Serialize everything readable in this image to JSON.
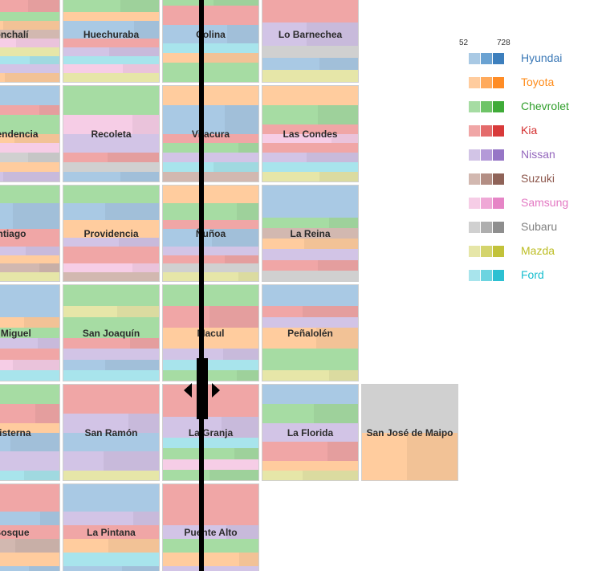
{
  "chart_data": {
    "type": "mosaic-treemap",
    "title": "",
    "legend": {
      "scale_min": "52",
      "scale_max": "728",
      "brands": [
        {
          "name": "Hyundai",
          "colors": [
            "#a9c9e4",
            "#6aa2d2",
            "#3d7fbd"
          ],
          "text_color": "#3a78b6"
        },
        {
          "name": "Toyota",
          "colors": [
            "#ffcc9e",
            "#ffaa5c",
            "#ff8c25"
          ],
          "text_color": "#ff8c1a"
        },
        {
          "name": "Chevrolet",
          "colors": [
            "#a6dca3",
            "#6ec467",
            "#3fab38"
          ],
          "text_color": "#2f9e2a"
        },
        {
          "name": "Kia",
          "colors": [
            "#f0a6a6",
            "#e46b6b",
            "#d83a3a"
          ],
          "text_color": "#d43030"
        },
        {
          "name": "Nissan",
          "colors": [
            "#d2c4e6",
            "#b49ad8",
            "#9676c6"
          ],
          "text_color": "#9467bd"
        },
        {
          "name": "Suzuki",
          "colors": [
            "#d2b8b0",
            "#b38e84",
            "#8f6358"
          ],
          "text_color": "#8c564b"
        },
        {
          "name": "Samsung",
          "colors": [
            "#f6cde6",
            "#efa8d6",
            "#e685c6"
          ],
          "text_color": "#e377c2"
        },
        {
          "name": "Subaru",
          "colors": [
            "#d0d0d0",
            "#aeaeae",
            "#8e8e8e"
          ],
          "text_color": "#7f7f7f"
        },
        {
          "name": "Mazda",
          "colors": [
            "#e6e6a8",
            "#d4d46c",
            "#c2c23a"
          ],
          "text_color": "#bcbd22"
        },
        {
          "name": "Ford",
          "colors": [
            "#a8e4ec",
            "#6cd4e0",
            "#2cc0d2"
          ],
          "text_color": "#17becf"
        }
      ]
    },
    "grid": {
      "columns": 5,
      "rows": 6
    },
    "comunas": [
      {
        "name": "Conchalí",
        "label": "onchalí",
        "col": 0,
        "row": 0,
        "bands": [
          [
            "Hyundai",
            1
          ],
          [
            "Kia",
            2
          ],
          [
            "Chevrolet",
            1
          ],
          [
            "Toyota",
            1
          ],
          [
            "Suzuki",
            1
          ],
          [
            "Samsung",
            1
          ],
          [
            "Mazda",
            1
          ],
          [
            "Ford",
            1
          ],
          [
            "Nissan",
            1
          ],
          [
            "Toyota",
            1
          ]
        ]
      },
      {
        "name": "Huechuraba",
        "label": "Huechuraba",
        "col": 1,
        "row": 0,
        "bands": [
          [
            "Kia",
            1
          ],
          [
            "Chevrolet",
            2
          ],
          [
            "Toyota",
            1
          ],
          [
            "Hyundai",
            2
          ],
          [
            "Kia",
            1
          ],
          [
            "Nissan",
            1
          ],
          [
            "Ford",
            1
          ],
          [
            "Samsung",
            1
          ],
          [
            "Mazda",
            1
          ]
        ]
      },
      {
        "name": "Colina",
        "label": "Colina",
        "col": 2,
        "row": 0,
        "bands": [
          [
            "Suzuki",
            1
          ],
          [
            "Chevrolet",
            1
          ],
          [
            "Kia",
            2
          ],
          [
            "Hyundai",
            2
          ],
          [
            "Ford",
            1
          ],
          [
            "Toyota",
            1
          ],
          [
            "Chevrolet",
            2
          ]
        ]
      },
      {
        "name": "Lo Barnechea",
        "label": "Lo Barnechea",
        "col": 3,
        "row": 0,
        "bands": [
          [
            "Kia",
            3
          ],
          [
            "Nissan",
            2
          ],
          [
            "Subaru",
            1
          ],
          [
            "Hyundai",
            1
          ],
          [
            "Mazda",
            1
          ]
        ]
      },
      {
        "name": "Independencia",
        "label": "ependencia",
        "col": 0,
        "row": 1,
        "bands": [
          [
            "Hyundai",
            2
          ],
          [
            "Kia",
            1
          ],
          [
            "Chevrolet",
            2
          ],
          [
            "Toyota",
            1
          ],
          [
            "Samsung",
            1
          ],
          [
            "Subaru",
            1
          ],
          [
            "Toyota",
            1
          ],
          [
            "Nissan",
            1
          ]
        ]
      },
      {
        "name": "Recoleta",
        "label": "Recoleta",
        "col": 1,
        "row": 1,
        "bands": [
          [
            "Chevrolet",
            3
          ],
          [
            "Samsung",
            2
          ],
          [
            "Nissan",
            2
          ],
          [
            "Kia",
            1
          ],
          [
            "Subaru",
            1
          ],
          [
            "Hyundai",
            1
          ]
        ]
      },
      {
        "name": "Vitacura",
        "label": "Vitacura",
        "col": 2,
        "row": 1,
        "bands": [
          [
            "Toyota",
            2
          ],
          [
            "Hyundai",
            3
          ],
          [
            "Kia",
            1
          ],
          [
            "Chevrolet",
            1
          ],
          [
            "Nissan",
            1
          ],
          [
            "Ford",
            1
          ],
          [
            "Suzuki",
            1
          ]
        ]
      },
      {
        "name": "Las Condes",
        "label": "Las Condes",
        "col": 3,
        "row": 1,
        "bands": [
          [
            "Toyota",
            2
          ],
          [
            "Chevrolet",
            2
          ],
          [
            "Kia",
            1
          ],
          [
            "Samsung",
            1
          ],
          [
            "Kia",
            1
          ],
          [
            "Nissan",
            1
          ],
          [
            "Ford",
            1
          ],
          [
            "Mazda",
            1
          ]
        ]
      },
      {
        "name": "Santiago",
        "label": "ntiago",
        "col": 0,
        "row": 2,
        "bands": [
          [
            "Chevrolet",
            2
          ],
          [
            "Hyundai",
            3
          ],
          [
            "Kia",
            2
          ],
          [
            "Nissan",
            1
          ],
          [
            "Toyota",
            1
          ],
          [
            "Suzuki",
            1
          ],
          [
            "Mazda",
            1
          ]
        ]
      },
      {
        "name": "Providencia",
        "label": "Providencia",
        "col": 1,
        "row": 2,
        "bands": [
          [
            "Chevrolet",
            2
          ],
          [
            "Hyundai",
            2
          ],
          [
            "Toyota",
            2
          ],
          [
            "Nissan",
            1
          ],
          [
            "Kia",
            2
          ],
          [
            "Samsung",
            1
          ],
          [
            "Suzuki",
            1
          ]
        ]
      },
      {
        "name": "Ñuñoa",
        "label": "Ñuñoa",
        "col": 2,
        "row": 2,
        "bands": [
          [
            "Toyota",
            2
          ],
          [
            "Chevrolet",
            2
          ],
          [
            "Kia",
            1
          ],
          [
            "Hyundai",
            2
          ],
          [
            "Nissan",
            1
          ],
          [
            "Kia",
            1
          ],
          [
            "Subaru",
            1
          ],
          [
            "Mazda",
            1
          ]
        ]
      },
      {
        "name": "La Reina",
        "label": "La Reina",
        "col": 3,
        "row": 2,
        "bands": [
          [
            "Hyundai",
            3
          ],
          [
            "Chevrolet",
            1
          ],
          [
            "Suzuki",
            1
          ],
          [
            "Toyota",
            1
          ],
          [
            "Nissan",
            1
          ],
          [
            "Kia",
            1
          ],
          [
            "Subaru",
            1
          ]
        ]
      },
      {
        "name": "San Miguel",
        "label": "n Miguel",
        "col": 0,
        "row": 3,
        "bands": [
          [
            "Hyundai",
            3
          ],
          [
            "Toyota",
            1
          ],
          [
            "Chevrolet",
            1
          ],
          [
            "Nissan",
            1
          ],
          [
            "Kia",
            1
          ],
          [
            "Samsung",
            1
          ],
          [
            "Ford",
            1
          ]
        ]
      },
      {
        "name": "San Joaquín",
        "label": "San Joaquín",
        "col": 1,
        "row": 3,
        "bands": [
          [
            "Chevrolet",
            2
          ],
          [
            "Mazda",
            1
          ],
          [
            "Chevrolet",
            2
          ],
          [
            "Kia",
            1
          ],
          [
            "Nissan",
            1
          ],
          [
            "Hyundai",
            1
          ],
          [
            "Ford",
            1
          ]
        ]
      },
      {
        "name": "Macul",
        "label": "Macul",
        "col": 2,
        "row": 3,
        "bands": [
          [
            "Chevrolet",
            2
          ],
          [
            "Kia",
            2
          ],
          [
            "Toyota",
            2
          ],
          [
            "Nissan",
            1
          ],
          [
            "Ford",
            1
          ],
          [
            "Chevrolet",
            1
          ]
        ]
      },
      {
        "name": "Peñalolén",
        "label": "Peñalolén",
        "col": 3,
        "row": 3,
        "bands": [
          [
            "Hyundai",
            2
          ],
          [
            "Kia",
            1
          ],
          [
            "Nissan",
            1
          ],
          [
            "Toyota",
            2
          ],
          [
            "Chevrolet",
            2
          ],
          [
            "Mazda",
            1
          ]
        ]
      },
      {
        "name": "La Cisterna",
        "label": "Cisterna",
        "col": 0,
        "row": 4,
        "bands": [
          [
            "Chevrolet",
            2
          ],
          [
            "Kia",
            2
          ],
          [
            "Toyota",
            1
          ],
          [
            "Hyundai",
            2
          ],
          [
            "Nissan",
            2
          ],
          [
            "Ford",
            1
          ]
        ]
      },
      {
        "name": "San Ramón",
        "label": "San Ramón",
        "col": 1,
        "row": 4,
        "bands": [
          [
            "Kia",
            3
          ],
          [
            "Nissan",
            2
          ],
          [
            "Hyundai",
            2
          ],
          [
            "Nissan",
            2
          ],
          [
            "Mazda",
            1
          ]
        ]
      },
      {
        "name": "La Granja",
        "label": "La Granja",
        "col": 2,
        "row": 4,
        "bands": [
          [
            "Kia",
            3
          ],
          [
            "Nissan",
            2
          ],
          [
            "Ford",
            1
          ],
          [
            "Chevrolet",
            1
          ],
          [
            "Samsung",
            1
          ],
          [
            "Chevrolet",
            1
          ]
        ]
      },
      {
        "name": "La Florida",
        "label": "La Florida",
        "col": 3,
        "row": 4,
        "bands": [
          [
            "Hyundai",
            2
          ],
          [
            "Chevrolet",
            2
          ],
          [
            "Nissan",
            2
          ],
          [
            "Kia",
            2
          ],
          [
            "Toyota",
            1
          ],
          [
            "Mazda",
            1
          ]
        ]
      },
      {
        "name": "San José de Maipo",
        "label": "San José de Maipo",
        "col": 4,
        "row": 4,
        "bands": [
          [
            "Subaru",
            1
          ],
          [
            "Toyota",
            1
          ]
        ]
      },
      {
        "name": "El Bosque",
        "label": "Bosque",
        "col": 0,
        "row": 5,
        "bands": [
          [
            "Kia",
            2
          ],
          [
            "Hyundai",
            1
          ],
          [
            "Kia",
            1
          ],
          [
            "Suzuki",
            1
          ],
          [
            "Toyota",
            1
          ],
          [
            "Hyundai",
            1
          ]
        ]
      },
      {
        "name": "La Pintana",
        "label": "La Pintana",
        "col": 1,
        "row": 5,
        "bands": [
          [
            "Hyundai",
            2
          ],
          [
            "Nissan",
            1
          ],
          [
            "Kia",
            1
          ],
          [
            "Toyota",
            1
          ],
          [
            "Ford",
            1
          ],
          [
            "Hyundai",
            1
          ]
        ]
      },
      {
        "name": "Puente Alto",
        "label": "Puente Alto",
        "col": 2,
        "row": 5,
        "bands": [
          [
            "Kia",
            3
          ],
          [
            "Nissan",
            1
          ],
          [
            "Chevrolet",
            1
          ],
          [
            "Toyota",
            1
          ],
          [
            "Nissan",
            1
          ]
        ]
      }
    ]
  }
}
